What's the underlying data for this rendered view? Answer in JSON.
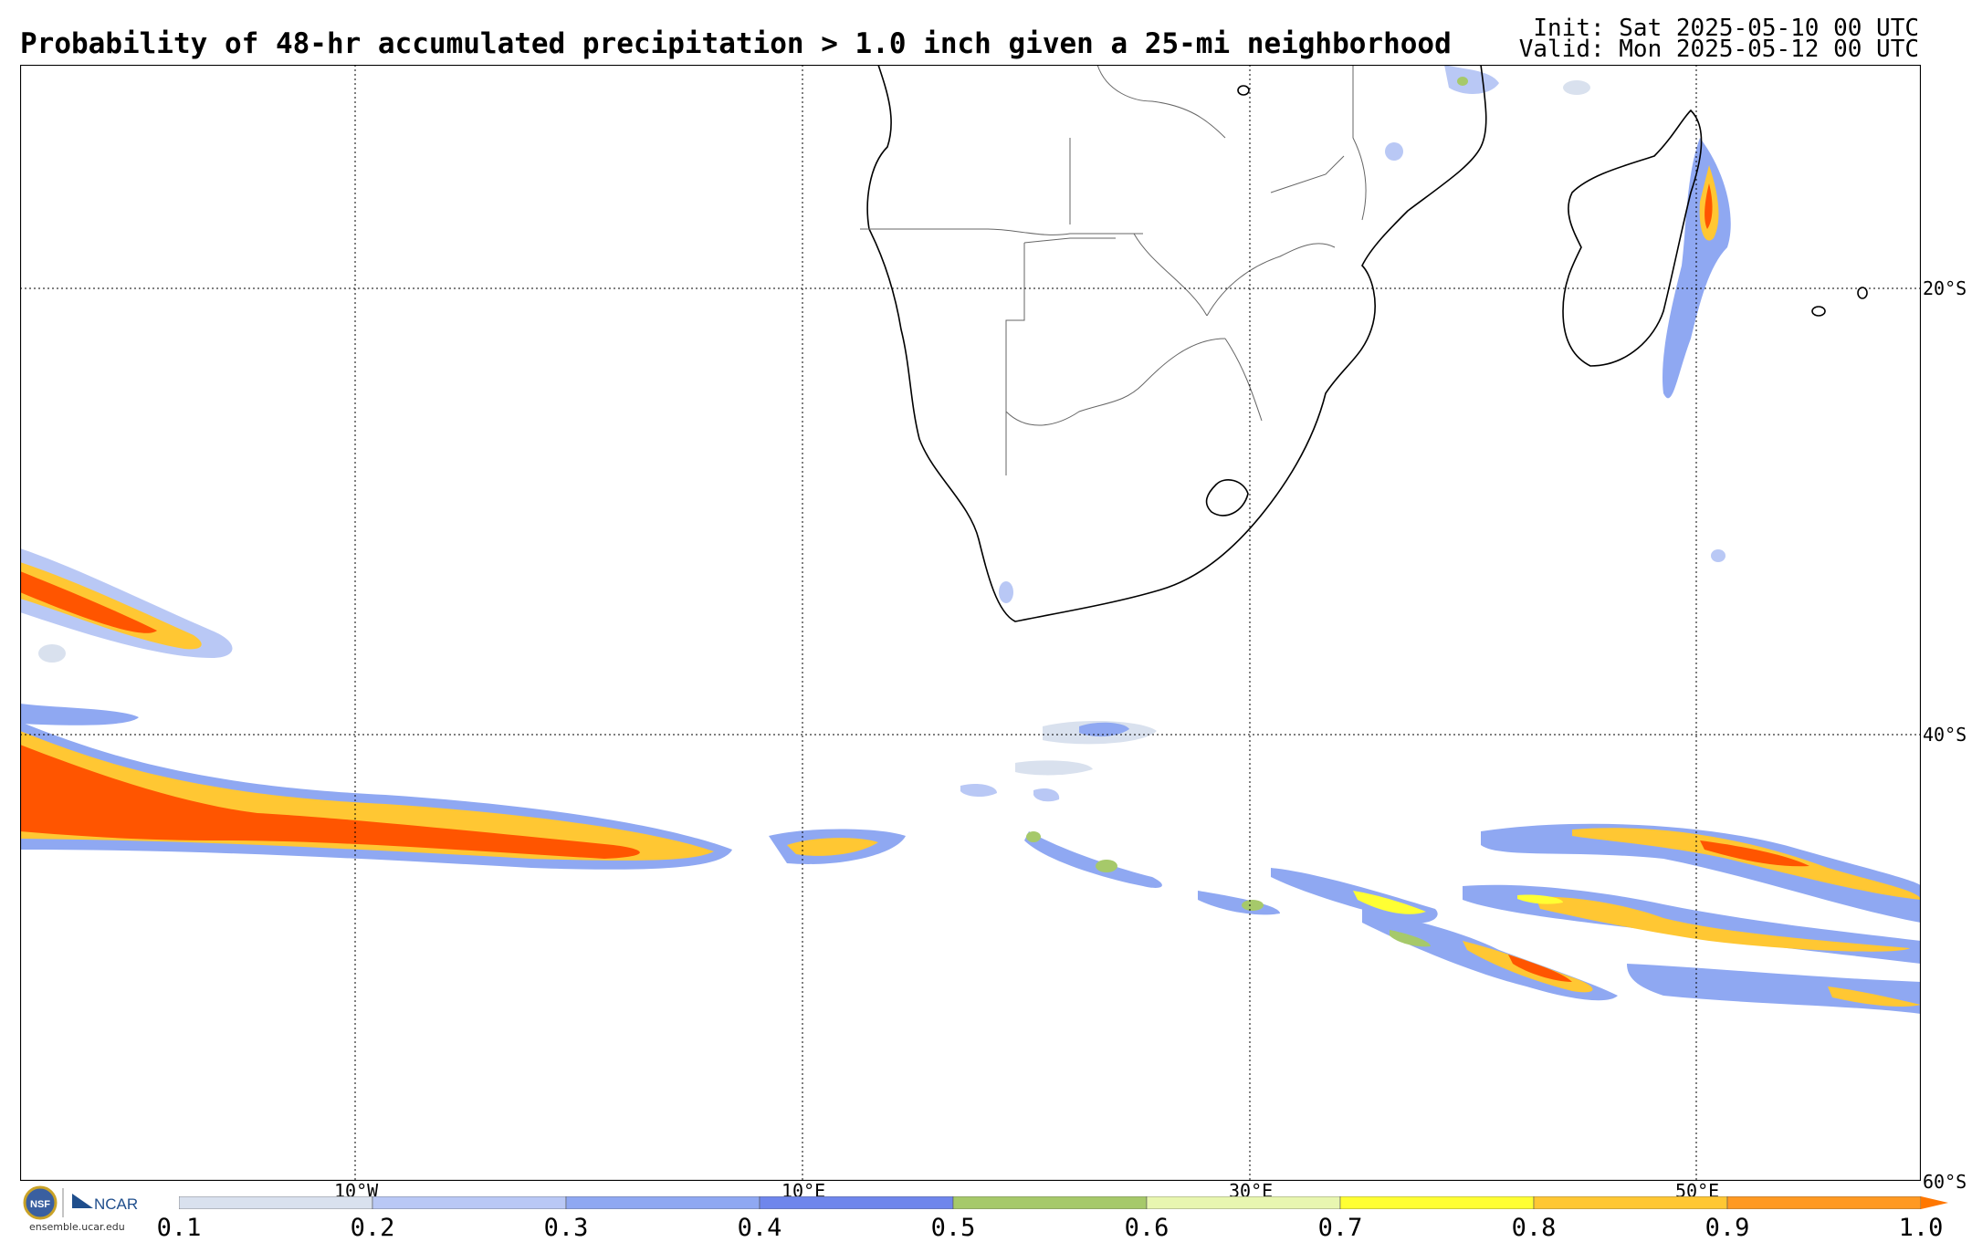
{
  "header": {
    "title": "Probability of 48-hr accumulated precipitation > 1.0 inch given a 25-mi neighborhood",
    "init": "Init: Sat 2025-05-10 00 UTC",
    "valid": "Valid: Mon 2025-05-12 00 UTC"
  },
  "map": {
    "region": "Southern Africa / South Atlantic / Southwest Indian Ocean",
    "lat_labels": [
      "20°S",
      "40°S",
      "60°S"
    ],
    "lon_labels": [
      "10°W",
      "10°E",
      "30°E",
      "50°E"
    ],
    "gridlines": true
  },
  "colorbar": {
    "ticks": [
      "0.1",
      "0.2",
      "0.3",
      "0.4",
      "0.5",
      "0.6",
      "0.7",
      "0.8",
      "0.9",
      "1.0"
    ],
    "colors": [
      "#d9e1ee",
      "#b9c8f5",
      "#8fa8f2",
      "#6f86ec",
      "#a6c96a",
      "#e8f6b0",
      "#ffff33",
      "#ffc733",
      "#ff9922"
    ]
  },
  "branding": {
    "logo_text": "NCAR",
    "url": "ensemble.ucar.edu"
  }
}
